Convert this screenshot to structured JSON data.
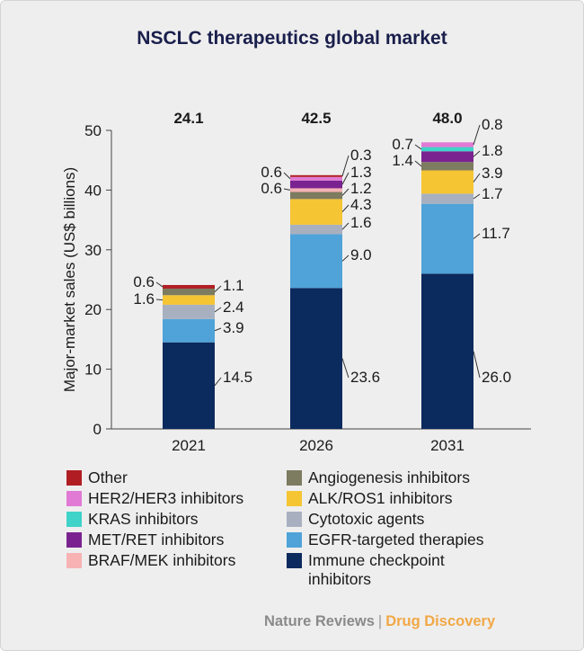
{
  "chart_data": {
    "type": "bar",
    "stacked": true,
    "title": "NSCLC therapeutics global market",
    "ylabel": "Major-market sales (US$ billions)",
    "xlabel": "",
    "ylim": [
      0,
      50
    ],
    "yticks": [
      "0",
      "10",
      "20",
      "30",
      "40",
      "50"
    ],
    "categories": [
      "2021",
      "2026",
      "2031"
    ],
    "totals": [
      "24.1",
      "42.5",
      "48.0"
    ],
    "series": [
      {
        "name": "Immune checkpoint inhibitors",
        "color": "#0b2a5e",
        "values": [
          14.5,
          23.6,
          26.0
        ],
        "labels": [
          "14.5",
          "23.6",
          "26.0"
        ]
      },
      {
        "name": "EGFR-targeted therapies",
        "color": "#4fa3d9",
        "values": [
          3.9,
          9.0,
          11.7
        ],
        "labels": [
          "3.9",
          "9.0",
          "11.7"
        ]
      },
      {
        "name": "Cytotoxic agents",
        "color": "#a8b0c0",
        "values": [
          2.4,
          1.6,
          1.7
        ],
        "labels": [
          "2.4",
          "1.6",
          "1.7"
        ]
      },
      {
        "name": "ALK/ROS1 inhibitors",
        "color": "#f5c533",
        "values": [
          1.6,
          4.3,
          3.9
        ],
        "labels": [
          "1.6",
          "4.3",
          "3.9"
        ]
      },
      {
        "name": "Angiogenesis inhibitors",
        "color": "#7d7b60",
        "values": [
          1.1,
          1.2,
          1.4
        ],
        "labels": [
          "1.1",
          "1.2",
          "1.4"
        ]
      },
      {
        "name": "BRAF/MEK inhibitors",
        "color": "#f7b3b3",
        "values": [
          0,
          0.6,
          0
        ],
        "labels": [
          "",
          "0.6",
          ""
        ]
      },
      {
        "name": "MET/RET inhibitors",
        "color": "#7a2390",
        "values": [
          0,
          1.3,
          1.8
        ],
        "labels": [
          "",
          "1.3",
          "1.8"
        ]
      },
      {
        "name": "KRAS inhibitors",
        "color": "#3fd3c9",
        "values": [
          0,
          0,
          0.7
        ],
        "labels": [
          "",
          "",
          "0.7"
        ]
      },
      {
        "name": "HER2/HER3 inhibitors",
        "color": "#e17ad4",
        "values": [
          0,
          0.6,
          0.8
        ],
        "labels": [
          "",
          "0.6",
          "0.8"
        ]
      },
      {
        "name": "Other",
        "color": "#b01e23",
        "values": [
          0.6,
          0.3,
          0
        ],
        "labels": [
          "0.6",
          "0.3",
          ""
        ]
      }
    ]
  },
  "legend": [
    {
      "label": "Other",
      "color": "#b01e23"
    },
    {
      "label": "HER2/HER3 inhibitors",
      "color": "#e17ad4"
    },
    {
      "label": "KRAS inhibitors",
      "color": "#3fd3c9"
    },
    {
      "label": "MET/RET inhibitors",
      "color": "#7a2390"
    },
    {
      "label": "BRAF/MEK inhibitors",
      "color": "#f7b3b3"
    },
    {
      "label": "Angiogenesis inhibitors",
      "color": "#7d7b60"
    },
    {
      "label": "ALK/ROS1 inhibitors",
      "color": "#f5c533"
    },
    {
      "label": "Cytotoxic agents",
      "color": "#a8b0c0"
    },
    {
      "label": "EGFR-targeted therapies",
      "color": "#4fa3d9"
    },
    {
      "label": "Immune checkpoint\ninhibitors",
      "color": "#0b2a5e"
    }
  ],
  "footer": {
    "brand": "Nature Reviews",
    "separator": "|",
    "journal": "Drug Discovery",
    "brand_color": "#8a8a8a",
    "journal_color": "#f2a845"
  }
}
